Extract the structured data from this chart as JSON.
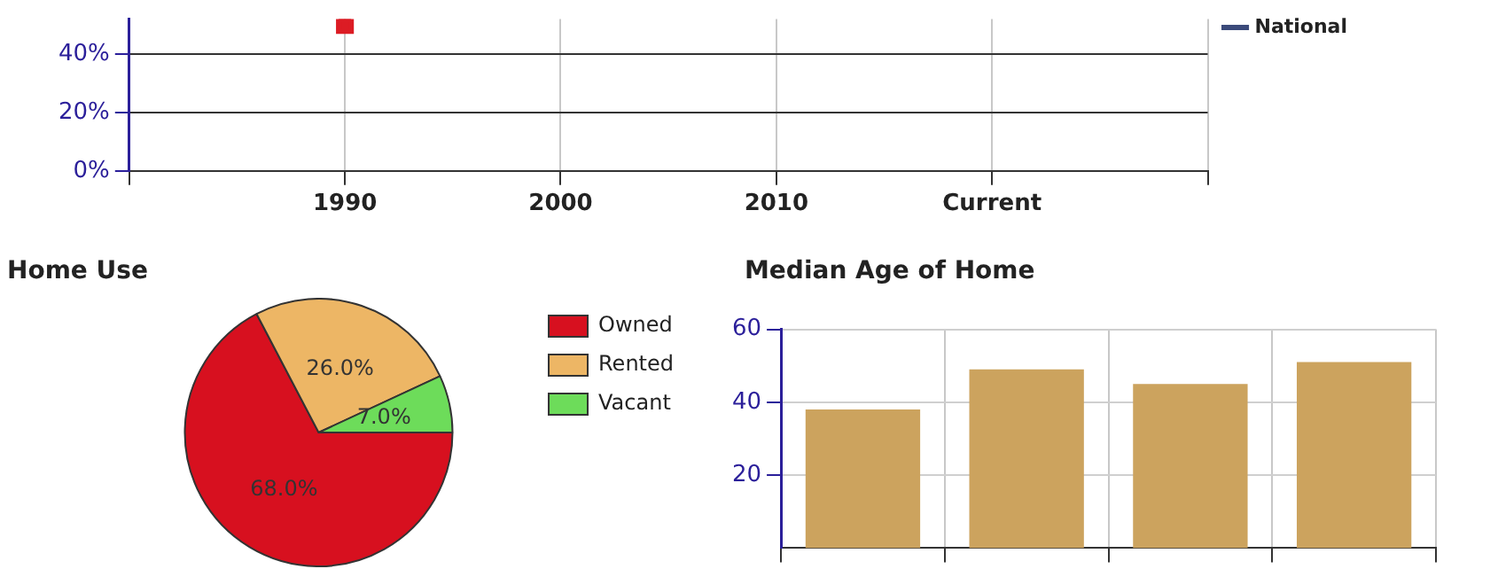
{
  "chart_data": [
    {
      "type": "line",
      "categories": [
        null,
        "1990",
        "2000",
        "2010",
        "Current",
        null
      ],
      "series": [
        {
          "color": "#dc1c24",
          "values": [
            null,
            50,
            null,
            null,
            null,
            null
          ]
        },
        {
          "name": "National",
          "color": "#3b4a7a",
          "values": [
            null,
            null,
            null,
            null,
            null,
            null
          ]
        }
      ],
      "ylim": [
        0,
        52
      ],
      "yticks": [
        {
          "value": 0,
          "label": "0%"
        },
        {
          "value": 20,
          "label": "20%"
        },
        {
          "value": 40,
          "label": "40%"
        }
      ],
      "grid": true,
      "legend": "top right",
      "marker": "square"
    },
    {
      "type": "pie",
      "title": "Home Use",
      "categories": [
        "Owned",
        "Rented",
        "Vacant"
      ],
      "values": [
        68,
        26,
        7
      ],
      "colors": [
        "#d7101f",
        "#edb665",
        "#6ddc5a"
      ],
      "value_labels": [
        "68.0%",
        "26.0%",
        "7.0%"
      ],
      "legend": "top right"
    },
    {
      "type": "bar",
      "title": "Median Age of Home",
      "categories": [
        null,
        null,
        null,
        null
      ],
      "values": [
        38,
        49,
        45,
        51
      ],
      "color": "#cca35e",
      "ylim": [
        0,
        60
      ],
      "yticks": [
        20,
        40,
        60
      ],
      "grid": true,
      "tick_labels": "y"
    }
  ]
}
